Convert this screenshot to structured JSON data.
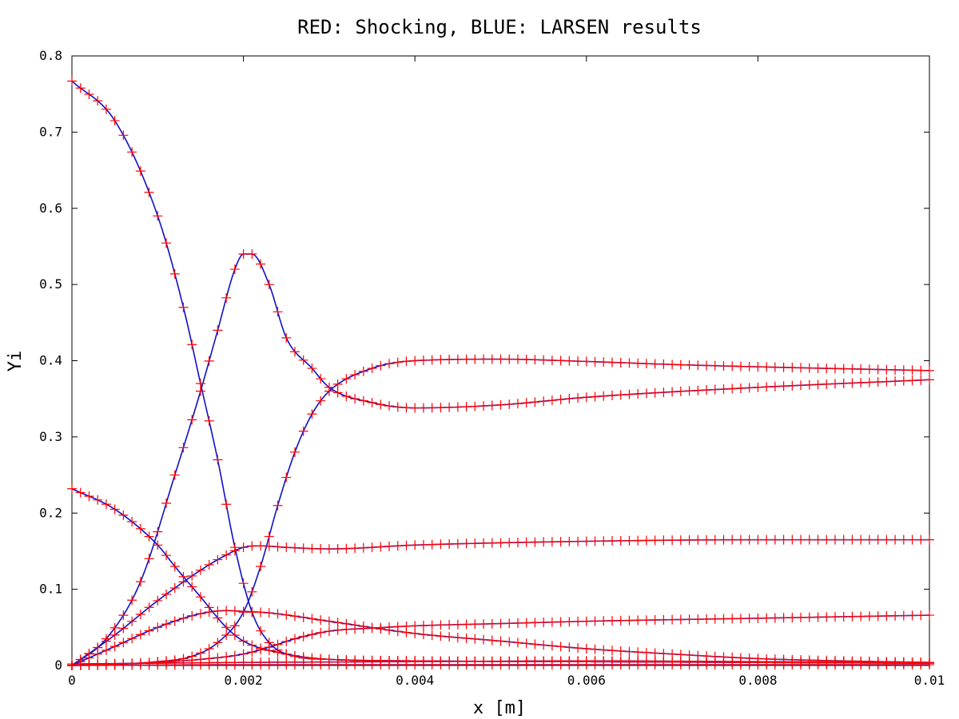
{
  "chart_data": {
    "type": "line",
    "title": "RED: Shocking, BLUE: LARSEN results",
    "xlabel": "x [m]",
    "ylabel": "Yi",
    "xlim": [
      0,
      0.01
    ],
    "ylim": [
      0,
      0.8
    ],
    "xticks": [
      0,
      0.002,
      0.004,
      0.006,
      0.008,
      0.01
    ],
    "xtick_labels": [
      "0",
      "0.002",
      "0.004",
      "0.006",
      "0.008",
      "0.01"
    ],
    "yticks": [
      0,
      0.1,
      0.2,
      0.3,
      0.4,
      0.5,
      0.6,
      0.7,
      0.8
    ],
    "ytick_labels": [
      "0",
      "0.1",
      "0.2",
      "0.3",
      "0.4",
      "0.5",
      "0.6",
      "0.7",
      "0.8"
    ],
    "grid": false,
    "legend": "none",
    "line_color": "#1010c8",
    "marker_color": "#ff0000",
    "marker": "+",
    "series": [
      {
        "x": [
          0,
          0.0005,
          0.001,
          0.0013,
          0.0015,
          0.0017,
          0.0019,
          0.0021,
          0.0023,
          0.0026,
          0.003,
          0.004,
          0.006,
          0.008,
          0.01
        ],
        "values": [
          0.767,
          0.715,
          0.59,
          0.47,
          0.37,
          0.27,
          0.155,
          0.07,
          0.03,
          0.012,
          0.008,
          0.006,
          0.005,
          0.004,
          0.003
        ]
      },
      {
        "x": [
          0,
          0.0004,
          0.0008,
          0.0012,
          0.0015,
          0.0017,
          0.0019,
          0.002,
          0.0021,
          0.0023,
          0.0025,
          0.0028,
          0.003,
          0.0035,
          0.004,
          0.005,
          0.006,
          0.008,
          0.01
        ],
        "values": [
          0,
          0.035,
          0.11,
          0.25,
          0.36,
          0.44,
          0.52,
          0.54,
          0.54,
          0.5,
          0.43,
          0.39,
          0.365,
          0.345,
          0.338,
          0.342,
          0.352,
          0.365,
          0.375
        ]
      },
      {
        "x": [
          0,
          0.001,
          0.0014,
          0.0017,
          0.002,
          0.0022,
          0.0024,
          0.0026,
          0.0028,
          0.003,
          0.0035,
          0.004,
          0.005,
          0.006,
          0.007,
          0.008,
          0.01
        ],
        "values": [
          0,
          0.005,
          0.012,
          0.03,
          0.07,
          0.13,
          0.21,
          0.28,
          0.33,
          0.36,
          0.39,
          0.4,
          0.402,
          0.399,
          0.395,
          0.392,
          0.387
        ]
      },
      {
        "x": [
          0,
          0.0005,
          0.001,
          0.0015,
          0.0018,
          0.002,
          0.0022,
          0.0025,
          0.003,
          0.004,
          0.006,
          0.008,
          0.01
        ],
        "values": [
          0,
          0.04,
          0.085,
          0.125,
          0.145,
          0.155,
          0.157,
          0.155,
          0.153,
          0.158,
          0.163,
          0.165,
          0.165
        ]
      },
      {
        "x": [
          0,
          0.0005,
          0.001,
          0.0012,
          0.0015,
          0.0018,
          0.002,
          0.0025,
          0.003,
          0.004,
          0.006,
          0.008,
          0.01
        ],
        "values": [
          0.232,
          0.205,
          0.158,
          0.13,
          0.09,
          0.05,
          0.032,
          0.015,
          0.008,
          0.006,
          0.005,
          0.004,
          0.003
        ]
      },
      {
        "x": [
          0,
          0.0005,
          0.001,
          0.0015,
          0.0018,
          0.002,
          0.0023,
          0.003,
          0.004,
          0.005,
          0.006,
          0.007,
          0.008,
          0.009,
          0.01
        ],
        "values": [
          0,
          0.025,
          0.05,
          0.068,
          0.072,
          0.071,
          0.069,
          0.058,
          0.042,
          0.032,
          0.022,
          0.015,
          0.009,
          0.006,
          0.004
        ]
      },
      {
        "x": [
          0,
          0.001,
          0.0015,
          0.002,
          0.0023,
          0.0026,
          0.003,
          0.0035,
          0.004,
          0.005,
          0.006,
          0.008,
          0.01
        ],
        "values": [
          0,
          0.004,
          0.008,
          0.015,
          0.024,
          0.035,
          0.045,
          0.049,
          0.052,
          0.055,
          0.058,
          0.062,
          0.066
        ]
      },
      {
        "x": [
          0,
          0.002,
          0.004,
          0.006,
          0.008,
          0.01
        ],
        "values": [
          0.002,
          0.004,
          0.005,
          0.006,
          0.005,
          0.004
        ]
      },
      {
        "x": [
          0,
          0.002,
          0.004,
          0.006,
          0.008,
          0.01
        ],
        "values": [
          0,
          0.001,
          0.001,
          0.001,
          0.001,
          0.001
        ]
      }
    ]
  }
}
